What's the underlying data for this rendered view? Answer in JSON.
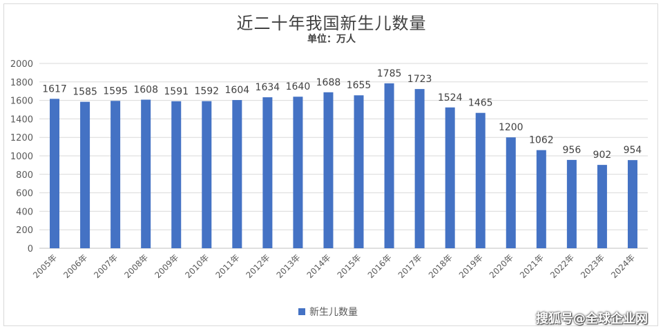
{
  "chart_data": {
    "type": "bar",
    "title": "近二十年我国新生儿数量",
    "subtitle": "单位：万人",
    "categories": [
      "2005年",
      "2006年",
      "2007年",
      "2008年",
      "2009年",
      "2010年",
      "2011年",
      "2012年",
      "2013年",
      "2014年",
      "2015年",
      "2016年",
      "2017年",
      "2018年",
      "2019年",
      "2020年",
      "2021年",
      "2022年",
      "2023年",
      "2024年"
    ],
    "series": [
      {
        "name": "新生儿数量",
        "values": [
          1617,
          1585,
          1595,
          1608,
          1591,
          1592,
          1604,
          1634,
          1640,
          1688,
          1655,
          1785,
          1723,
          1524,
          1465,
          1200,
          1062,
          956,
          902,
          954
        ]
      }
    ],
    "ylim": [
      0,
      2000
    ],
    "yticks": [
      "0",
      "200",
      "400",
      "600",
      "800",
      "1000",
      "1200",
      "1400",
      "1600",
      "1800",
      "2000"
    ],
    "grid": true,
    "legend_position": "bottom",
    "bar_color": "#4472c4"
  },
  "watermark": "搜狐号@全球企业网"
}
